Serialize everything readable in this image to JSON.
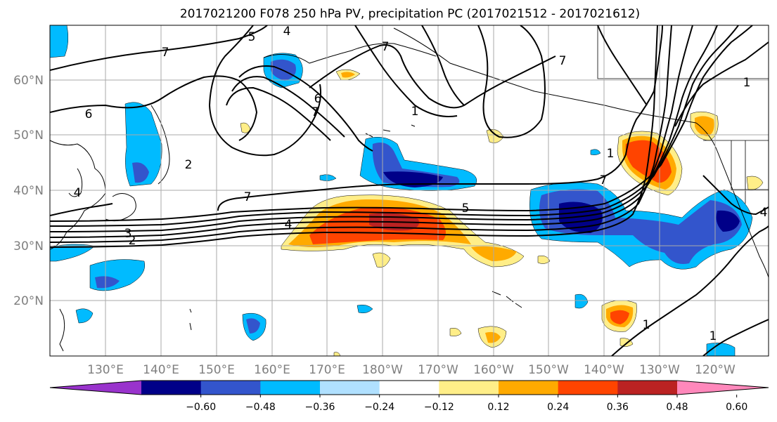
{
  "title": "2017021200 F078 250 hPa PV, precipitation PC (2017021512 - 2017021612)",
  "lon_labels": [
    "130°E",
    "140°E",
    "150°E",
    "160°E",
    "170°E",
    "180°W",
    "170°W",
    "160°W",
    "150°W",
    "140°W",
    "130°W",
    "120°W"
  ],
  "lat_labels": [
    "60°N",
    "50°N",
    "40°N",
    "30°N",
    "20°N"
  ],
  "colorbar": {
    "colors": [
      "#9933cc",
      "#000088",
      "#3355cc",
      "#00bbff",
      "#b0e0ff",
      "#ffffff",
      "#ffee88",
      "#ffaa00",
      "#ff4400",
      "#bb2222",
      "#ff88bb"
    ],
    "tick_labels": [
      "−0.60",
      "−0.48",
      "−0.36",
      "−0.24",
      "−0.12",
      "0.12",
      "0.24",
      "0.36",
      "0.48",
      "0.60"
    ]
  },
  "contour_labels": [
    "7",
    "6",
    "5",
    "4",
    "7",
    "6",
    "7",
    "2",
    "3",
    "4",
    "7",
    "5",
    "4",
    "7",
    "7",
    "1",
    "1",
    "1",
    "1",
    "4",
    "2",
    "1"
  ],
  "fills": {
    "neg_light": "#00bbff",
    "neg_mid": "#3355cc",
    "neg_dark": "#000088",
    "pos_light": "#ffee88",
    "pos_mid": "#ffaa00",
    "pos_strong": "#ff4400",
    "pos_dark": "#bb2222"
  }
}
